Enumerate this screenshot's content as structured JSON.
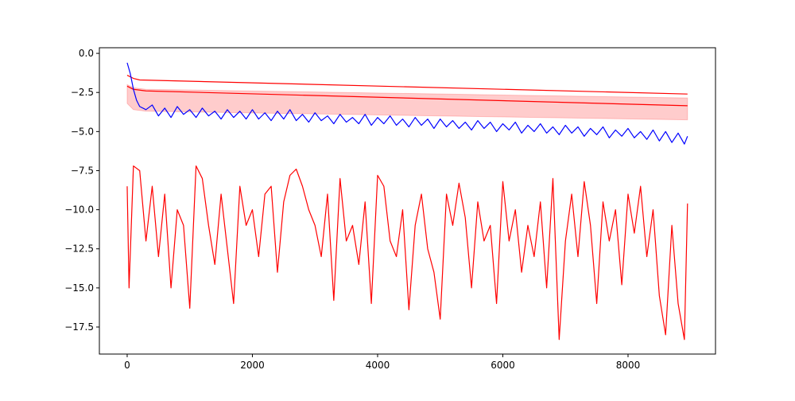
{
  "chart_data": {
    "type": "line",
    "xlim": [
      -444,
      9397
    ],
    "ylim": [
      -19.23,
      0.36
    ],
    "xticks": [
      0,
      2000,
      4000,
      6000,
      8000
    ],
    "yticks": [
      {
        "value": 0,
        "label": "0.0"
      },
      {
        "value": -2.5,
        "label": "−2.5"
      },
      {
        "value": -5,
        "label": "−5.0"
      },
      {
        "value": -7.5,
        "label": "−7.5"
      },
      {
        "value": -10,
        "label": "−10.0"
      },
      {
        "value": -12.5,
        "label": "−12.5"
      },
      {
        "value": -15,
        "label": "−15.0"
      },
      {
        "value": -17.5,
        "label": "−17.5"
      }
    ],
    "bands": [
      {
        "color": "#ff0000",
        "alpha": 0.2,
        "x": [
          0,
          100,
          300,
          8950
        ],
        "upper": [
          -2.0,
          -2.2,
          -2.3,
          -2.85
        ],
        "lower": [
          -3.2,
          -3.6,
          -3.7,
          -4.25
        ]
      }
    ],
    "series": [
      {
        "color": "#ff0000",
        "x": [
          0,
          100,
          200,
          8950
        ],
        "values": [
          -1.4,
          -1.6,
          -1.7,
          -2.6
        ]
      },
      {
        "color": "#ff0000",
        "x": [
          0,
          100,
          300,
          8950
        ],
        "values": [
          -2.1,
          -2.3,
          -2.4,
          -3.35
        ]
      },
      {
        "color": "#0000ff",
        "x": [
          0,
          50,
          100,
          150,
          200,
          300,
          400,
          500,
          600,
          700,
          800,
          900,
          1000,
          1100,
          1200,
          1300,
          1400,
          1500,
          1600,
          1700,
          1800,
          1900,
          2000,
          2100,
          2200,
          2300,
          2400,
          2500,
          2600,
          2700,
          2800,
          2900,
          3000,
          3100,
          3200,
          3300,
          3400,
          3500,
          3600,
          3700,
          3800,
          3900,
          4000,
          4100,
          4200,
          4300,
          4400,
          4500,
          4600,
          4700,
          4800,
          4900,
          5000,
          5100,
          5200,
          5300,
          5400,
          5500,
          5600,
          5700,
          5800,
          5900,
          6000,
          6100,
          6200,
          6300,
          6400,
          6500,
          6600,
          6700,
          6800,
          6900,
          7000,
          7100,
          7200,
          7300,
          7400,
          7500,
          7600,
          7700,
          7800,
          7900,
          8000,
          8100,
          8200,
          8300,
          8400,
          8500,
          8600,
          8700,
          8800,
          8900,
          8950
        ],
        "values": [
          -0.6,
          -1.3,
          -2.3,
          -3.0,
          -3.4,
          -3.6,
          -3.3,
          -4.0,
          -3.5,
          -4.1,
          -3.4,
          -3.9,
          -3.6,
          -4.1,
          -3.5,
          -4.0,
          -3.7,
          -4.2,
          -3.6,
          -4.1,
          -3.7,
          -4.2,
          -3.6,
          -4.2,
          -3.8,
          -4.3,
          -3.7,
          -4.2,
          -3.6,
          -4.3,
          -3.9,
          -4.4,
          -3.8,
          -4.3,
          -4.0,
          -4.5,
          -3.9,
          -4.4,
          -4.1,
          -4.5,
          -3.9,
          -4.6,
          -4.1,
          -4.5,
          -4.0,
          -4.6,
          -4.2,
          -4.7,
          -4.1,
          -4.6,
          -4.2,
          -4.8,
          -4.2,
          -4.7,
          -4.3,
          -4.8,
          -4.4,
          -4.9,
          -4.3,
          -4.8,
          -4.4,
          -5.0,
          -4.5,
          -4.9,
          -4.4,
          -5.1,
          -4.6,
          -5.0,
          -4.5,
          -5.1,
          -4.7,
          -5.2,
          -4.6,
          -5.1,
          -4.7,
          -5.3,
          -4.8,
          -5.2,
          -4.7,
          -5.4,
          -4.9,
          -5.3,
          -4.8,
          -5.4,
          -5.0,
          -5.5,
          -4.9,
          -5.6,
          -5.0,
          -5.7,
          -5.1,
          -5.8,
          -5.3
        ]
      },
      {
        "color": "#ff0000",
        "x": [
          0,
          30,
          100,
          200,
          300,
          400,
          500,
          600,
          700,
          800,
          900,
          1000,
          1100,
          1200,
          1300,
          1400,
          1500,
          1600,
          1700,
          1800,
          1900,
          2000,
          2100,
          2200,
          2300,
          2400,
          2500,
          2600,
          2700,
          2800,
          2900,
          3000,
          3100,
          3200,
          3300,
          3400,
          3500,
          3600,
          3700,
          3800,
          3900,
          4000,
          4100,
          4200,
          4300,
          4400,
          4500,
          4600,
          4700,
          4800,
          4900,
          5000,
          5100,
          5200,
          5300,
          5400,
          5500,
          5600,
          5700,
          5800,
          5900,
          6000,
          6100,
          6200,
          6300,
          6400,
          6500,
          6600,
          6700,
          6800,
          6900,
          7000,
          7100,
          7200,
          7300,
          7400,
          7500,
          7600,
          7700,
          7800,
          7900,
          8000,
          8100,
          8200,
          8300,
          8400,
          8500,
          8600,
          8700,
          8800,
          8900,
          8950
        ],
        "values": [
          -8.5,
          -15,
          -7.2,
          -7.5,
          -12,
          -8.5,
          -13,
          -9,
          -15,
          -10,
          -11,
          -16.3,
          -7.2,
          -8,
          -11,
          -13.5,
          -9,
          -12.5,
          -16,
          -8.5,
          -11,
          -10,
          -13,
          -9,
          -8.5,
          -14,
          -9.5,
          -7.8,
          -7.4,
          -8.5,
          -10,
          -11,
          -13,
          -9,
          -15.8,
          -8,
          -12,
          -11,
          -13.5,
          -9.5,
          -16,
          -7.8,
          -8.5,
          -12,
          -13,
          -10,
          -16.4,
          -11,
          -9,
          -12.5,
          -14,
          -17,
          -9,
          -11,
          -8.3,
          -10.5,
          -15,
          -9.5,
          -12,
          -11,
          -16,
          -8.2,
          -12,
          -10,
          -14,
          -11,
          -13,
          -9.5,
          -15,
          -8,
          -18.3,
          -12,
          -9,
          -13,
          -8.2,
          -11,
          -16,
          -9.5,
          -12,
          -10,
          -14.8,
          -9,
          -11.5,
          -8.5,
          -13,
          -10,
          -15.5,
          -18,
          -11,
          -16,
          -18.3,
          -9.6
        ]
      }
    ]
  }
}
